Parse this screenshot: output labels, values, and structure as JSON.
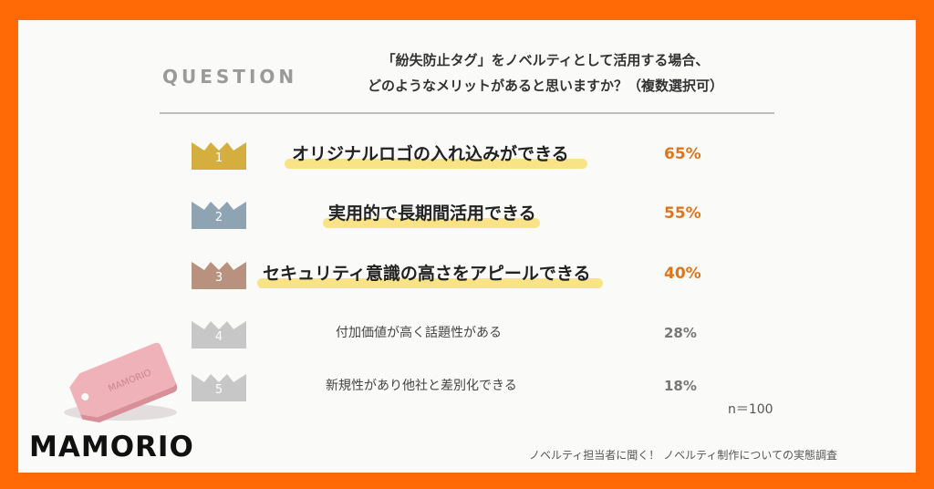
{
  "question": {
    "label": "QUESTION",
    "line1": "「紛失防止タグ」をノベルティとして活用する場合、",
    "line2": "どのようなメリットがあると思いますか？（複数選択可）"
  },
  "ranking": [
    {
      "rank": "1",
      "label": "オリジナルロゴの入れ込みができる",
      "percent": "65%",
      "crown_color": "#d4ae3e"
    },
    {
      "rank": "2",
      "label": "実用的で長期間活用できる",
      "percent": "55%",
      "crown_color": "#8fa4b3"
    },
    {
      "rank": "3",
      "label": "セキュリティ意識の高さをアピールできる",
      "percent": "40%",
      "crown_color": "#b9917f"
    },
    {
      "rank": "4",
      "label": "付加価値が高く話題性がある",
      "percent": "28%",
      "crown_color": "#c7c7c7"
    },
    {
      "rank": "5",
      "label": "新規性があり他社と差別化できる",
      "percent": "18%",
      "crown_color": "#c7c7c7"
    }
  ],
  "sample_size": "n＝100",
  "product_tag_text": "MAMORIO",
  "brand": "MAMORIO",
  "source": "ノベルティ担当者に聞く！ ノベルティ制作についての実態調査"
}
